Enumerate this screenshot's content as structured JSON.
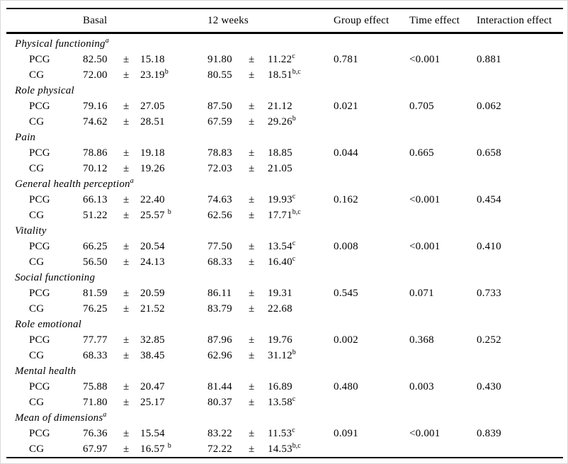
{
  "table": {
    "columns": {
      "basal": "Basal",
      "week12": "12 weeks",
      "group_effect": "Group effect",
      "time_effect": "Time effect",
      "interaction_effect": "Interaction effect"
    },
    "plus_minus": "±",
    "sections": [
      {
        "label": "Physical functioning",
        "label_sup": "a",
        "rows": [
          {
            "group": "PCG",
            "basal_mean": "82.50",
            "basal_sd": "15.18",
            "basal_sup": "",
            "week12_mean": "91.80",
            "week12_sd": "11.22",
            "week12_sup": "c",
            "group_effect": "0.781",
            "time_effect": "<0.001",
            "interaction_effect": "0.881"
          },
          {
            "group": "CG",
            "basal_mean": "72.00",
            "basal_sd": "23.19",
            "basal_sup": "b",
            "week12_mean": "80.55",
            "week12_sd": "18.51",
            "week12_sup": "b,c",
            "group_effect": "",
            "time_effect": "",
            "interaction_effect": ""
          }
        ]
      },
      {
        "label": "Role physical",
        "label_sup": "",
        "rows": [
          {
            "group": "PCG",
            "basal_mean": "79.16",
            "basal_sd": "27.05",
            "basal_sup": "",
            "week12_mean": "87.50",
            "week12_sd": "21.12",
            "week12_sup": "",
            "group_effect": "0.021",
            "time_effect": "0.705",
            "interaction_effect": "0.062"
          },
          {
            "group": "CG",
            "basal_mean": "74.62",
            "basal_sd": "28.51",
            "basal_sup": "",
            "week12_mean": "67.59",
            "week12_sd": "29.26",
            "week12_sup": "b",
            "group_effect": "",
            "time_effect": "",
            "interaction_effect": ""
          }
        ]
      },
      {
        "label": "Pain",
        "label_sup": "",
        "rows": [
          {
            "group": "PCG",
            "basal_mean": "78.86",
            "basal_sd": "19.18",
            "basal_sup": "",
            "week12_mean": "78.83",
            "week12_sd": "18.85",
            "week12_sup": "",
            "group_effect": "0.044",
            "time_effect": "0.665",
            "interaction_effect": "0.658"
          },
          {
            "group": "CG",
            "basal_mean": "70.12",
            "basal_sd": "19.26",
            "basal_sup": "",
            "week12_mean": "72.03",
            "week12_sd": "21.05",
            "week12_sup": "",
            "group_effect": "",
            "time_effect": "",
            "interaction_effect": ""
          }
        ]
      },
      {
        "label": "General health perception",
        "label_sup": "a",
        "rows": [
          {
            "group": "PCG",
            "basal_mean": "66.13",
            "basal_sd": "22.40",
            "basal_sup": "",
            "week12_mean": "74.63",
            "week12_sd": "19.93",
            "week12_sup": "c",
            "group_effect": "0.162",
            "time_effect": "<0.001",
            "interaction_effect": "0.454"
          },
          {
            "group": "CG",
            "basal_mean": "51.22",
            "basal_sd": "25.57 ",
            "basal_sup": "b",
            "week12_mean": "62.56",
            "week12_sd": "17.71",
            "week12_sup": "b,c",
            "group_effect": "",
            "time_effect": "",
            "interaction_effect": ""
          }
        ]
      },
      {
        "label": "Vitality",
        "label_sup": "",
        "rows": [
          {
            "group": "PCG",
            "basal_mean": "66.25",
            "basal_sd": "20.54",
            "basal_sup": "",
            "week12_mean": "77.50",
            "week12_sd": "13.54",
            "week12_sup": "c",
            "group_effect": "0.008",
            "time_effect": "<0.001",
            "interaction_effect": "0.410"
          },
          {
            "group": "CG",
            "basal_mean": "56.50",
            "basal_sd": "24.13",
            "basal_sup": "",
            "week12_mean": "68.33",
            "week12_sd": "16.40",
            "week12_sup": "c",
            "group_effect": "",
            "time_effect": "",
            "interaction_effect": ""
          }
        ]
      },
      {
        "label": "Social functioning",
        "label_sup": "",
        "rows": [
          {
            "group": "PCG",
            "basal_mean": "81.59",
            "basal_sd": "20.59",
            "basal_sup": "",
            "week12_mean": "86.11",
            "week12_sd": "19.31",
            "week12_sup": "",
            "group_effect": "0.545",
            "time_effect": "0.071",
            "interaction_effect": "0.733"
          },
          {
            "group": "CG",
            "basal_mean": "76.25",
            "basal_sd": "21.52",
            "basal_sup": "",
            "week12_mean": "83.79",
            "week12_sd": "22.68",
            "week12_sup": "",
            "group_effect": "",
            "time_effect": "",
            "interaction_effect": ""
          }
        ]
      },
      {
        "label": "Role emotional",
        "label_sup": "",
        "rows": [
          {
            "group": "PCG",
            "basal_mean": "77.77",
            "basal_sd": "32.85",
            "basal_sup": "",
            "week12_mean": "87.96",
            "week12_sd": "19.76",
            "week12_sup": "",
            "group_effect": "0.002",
            "time_effect": "0.368",
            "interaction_effect": "0.252"
          },
          {
            "group": "CG",
            "basal_mean": "68.33",
            "basal_sd": "38.45",
            "basal_sup": "",
            "week12_mean": "62.96",
            "week12_sd": "31.12",
            "week12_sup": "b",
            "group_effect": "",
            "time_effect": "",
            "interaction_effect": ""
          }
        ]
      },
      {
        "label": "Mental health",
        "label_sup": "",
        "rows": [
          {
            "group": "PCG",
            "basal_mean": "75.88",
            "basal_sd": "20.47",
            "basal_sup": "",
            "week12_mean": "81.44",
            "week12_sd": "16.89",
            "week12_sup": "",
            "group_effect": "0.480",
            "time_effect": "0.003",
            "interaction_effect": "0.430"
          },
          {
            "group": "CG",
            "basal_mean": "71.80",
            "basal_sd": "25.17",
            "basal_sup": "",
            "week12_mean": "80.37",
            "week12_sd": "13.58",
            "week12_sup": "c",
            "group_effect": "",
            "time_effect": "",
            "interaction_effect": ""
          }
        ]
      },
      {
        "label": "Mean of dimensions",
        "label_sup": "a",
        "rows": [
          {
            "group": "PCG",
            "basal_mean": "76.36",
            "basal_sd": "15.54",
            "basal_sup": "",
            "week12_mean": "83.22",
            "week12_sd": "11.53",
            "week12_sup": "c",
            "group_effect": "0.091",
            "time_effect": "<0.001",
            "interaction_effect": "0.839"
          },
          {
            "group": "CG",
            "basal_mean": "67.97",
            "basal_sd": "16.57 ",
            "basal_sup": "b",
            "week12_mean": "72.22",
            "week12_sd": "14.53",
            "week12_sup": "b,c",
            "group_effect": "",
            "time_effect": "",
            "interaction_effect": ""
          }
        ]
      }
    ]
  }
}
